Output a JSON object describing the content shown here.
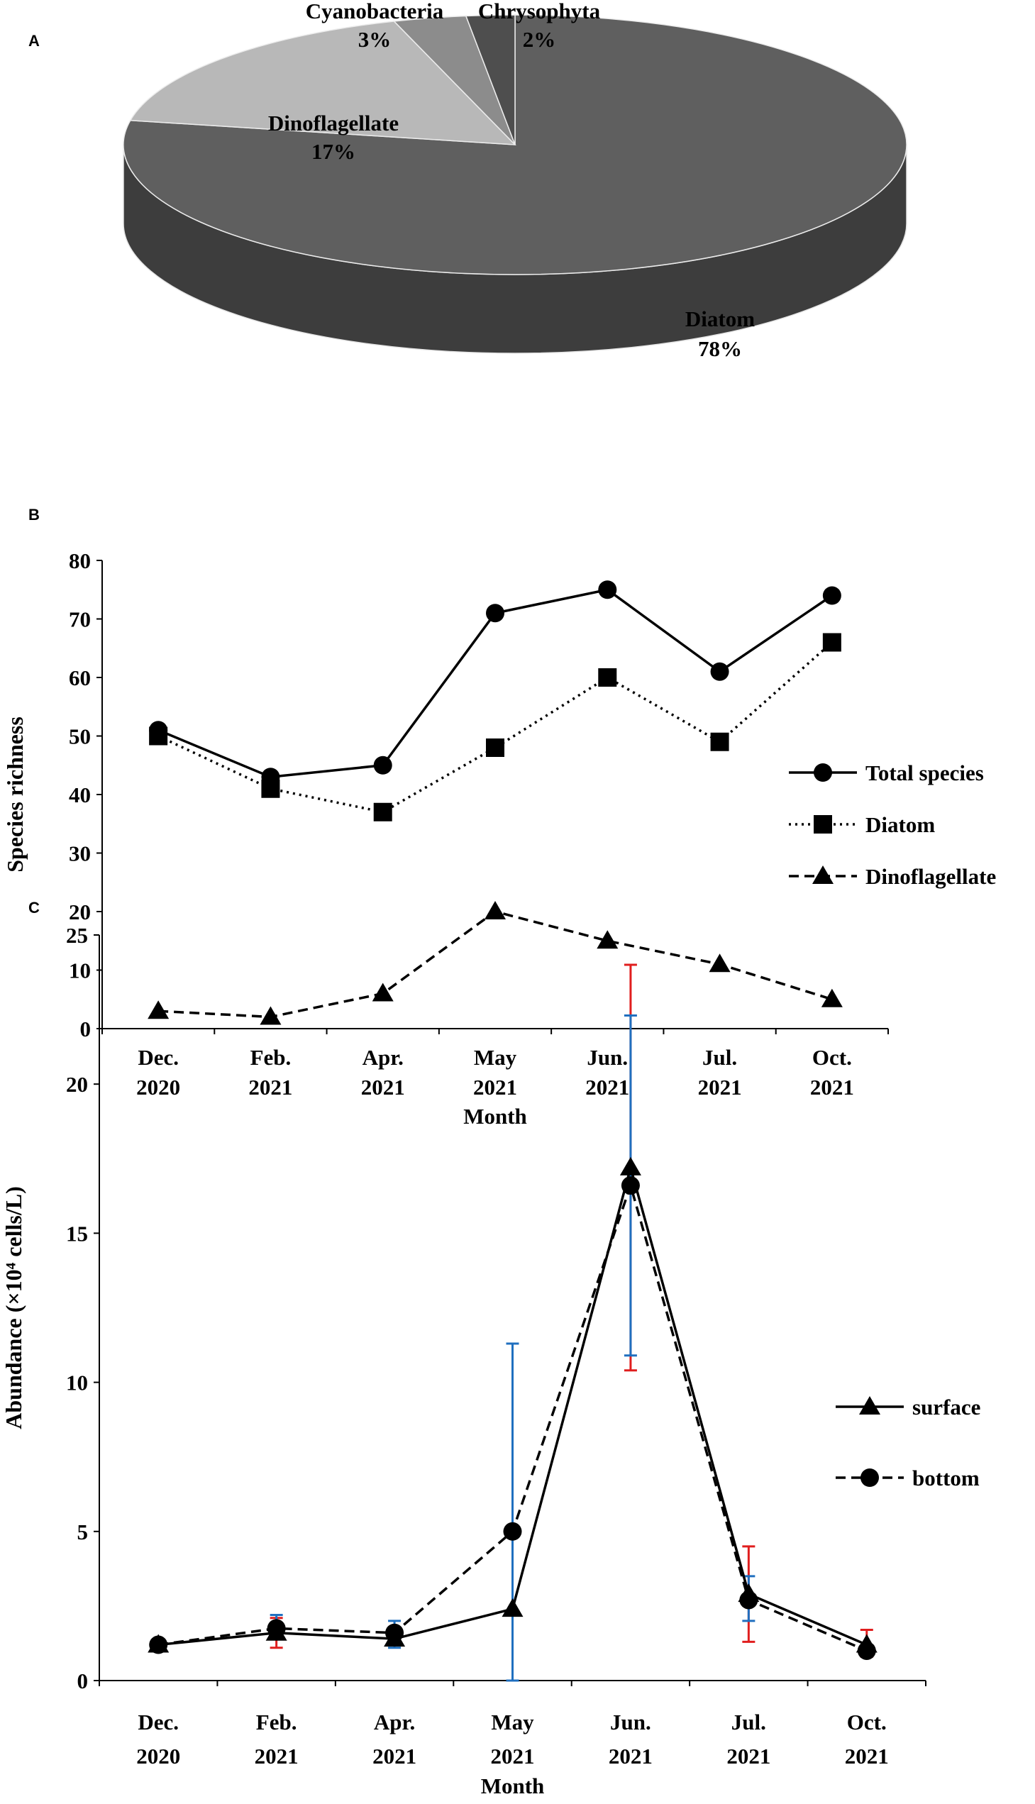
{
  "chart_data": [
    {
      "panel": "A",
      "type": "pie",
      "title": "",
      "labels": [
        "Diatom",
        "Dinoflagellate",
        "Cyanobacteria",
        "Chrysophyta"
      ],
      "values": [
        78,
        17,
        3,
        2
      ],
      "value_labels": [
        "78%",
        "17%",
        "3%",
        "2%"
      ],
      "colors": [
        "#5f5f5f",
        "#b8b8b8",
        "#8c8c8c",
        "#4e4e4e"
      ],
      "side_colors": [
        "#3d3d3d",
        "#9a9a9a",
        "#6e6e6e",
        "#383838"
      ]
    },
    {
      "panel": "B",
      "type": "line",
      "title": "",
      "categories": [
        "Dec.\n2020",
        "Feb.\n2021",
        "Apr.\n2021",
        "May\n2021",
        "Jun.\n2021",
        "Jul.\n2021",
        "Oct.\n2021"
      ],
      "xlabel": "Month",
      "ylabel": "Species richness",
      "ylim": [
        0,
        80
      ],
      "yticks": [
        0,
        10,
        20,
        30,
        40,
        50,
        60,
        70,
        80
      ],
      "legend_position": "right",
      "series": [
        {
          "name": "Total species",
          "values": [
            51,
            43,
            45,
            71,
            75,
            61,
            74
          ],
          "marker": "circle",
          "line": "solid"
        },
        {
          "name": "Diatom",
          "values": [
            50,
            41,
            37,
            48,
            60,
            49,
            66
          ],
          "marker": "square",
          "line": "dotted"
        },
        {
          "name": "Dinoflagellate",
          "values": [
            3,
            2,
            6,
            20,
            15,
            11,
            5
          ],
          "marker": "triangle",
          "line": "dashed"
        }
      ]
    },
    {
      "panel": "C",
      "type": "line",
      "title": "",
      "categories": [
        "Dec.\n2020",
        "Feb.\n2021",
        "Apr.\n2021",
        "May\n2021",
        "Jun.\n2021",
        "Jul.\n2021",
        "Oct.\n2021"
      ],
      "xlabel": "Month",
      "ylabel": "Abundance (×10⁴ cells/L)",
      "ylim": [
        0,
        25
      ],
      "yticks": [
        0,
        5,
        10,
        15,
        20,
        25
      ],
      "legend_position": "right",
      "series": [
        {
          "name": "surface",
          "values": [
            1.2,
            1.6,
            1.4,
            2.4,
            17.2,
            2.9,
            1.2
          ],
          "marker": "triangle",
          "line": "solid",
          "error_bars": [
            null,
            [
              1.1,
              2.1
            ],
            null,
            null,
            [
              10.4,
              24.0
            ],
            [
              1.3,
              4.5
            ],
            [
              0.8,
              1.7
            ]
          ],
          "error_color": "#e01e1e"
        },
        {
          "name": "bottom",
          "values": [
            1.2,
            1.75,
            1.6,
            5.0,
            16.6,
            2.7,
            1.0
          ],
          "marker": "circle",
          "line": "dashed",
          "error_bars": [
            null,
            [
              1.4,
              2.2
            ],
            [
              1.1,
              2.0
            ],
            [
              0.0,
              11.3
            ],
            [
              10.9,
              22.3
            ],
            [
              2.0,
              3.5
            ],
            null
          ],
          "error_color": "#1f6fbf"
        }
      ]
    }
  ]
}
